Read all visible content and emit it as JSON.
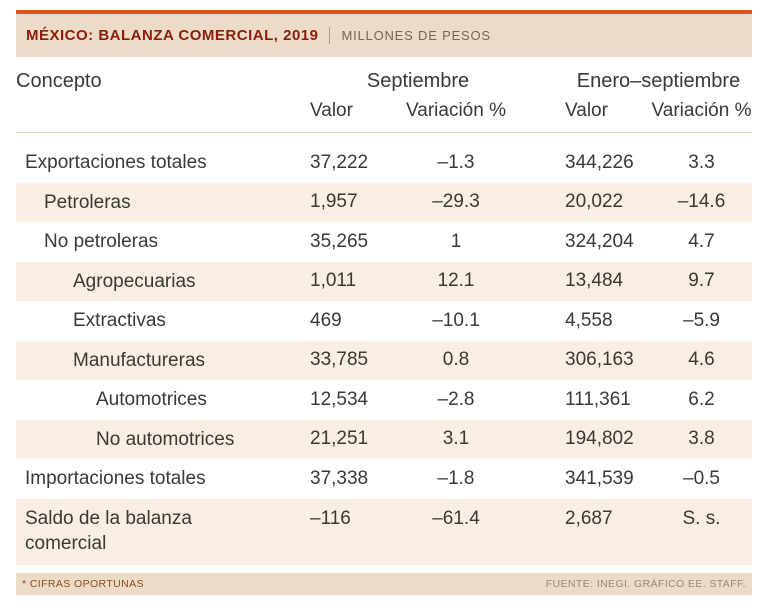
{
  "colors": {
    "accent_bar": "#da5319",
    "band_bg": "#ecdbc6",
    "title_text": "#8e1c0c",
    "row_stripe": "#f8eee1",
    "body_text": "#3a3936"
  },
  "header": {
    "title": "MÉXICO: BALANZA COMERCIAL, 2019",
    "subtitle": "MILLONES DE PESOS"
  },
  "table": {
    "concept_header": "Concepto",
    "groups": [
      {
        "label": "Septiembre",
        "sub": [
          "Valor",
          "Variación %"
        ]
      },
      {
        "label": "Enero–septiembre",
        "sub": [
          "Valor",
          "Variación %"
        ]
      }
    ],
    "rows": [
      {
        "label": "Exportaciones totales",
        "indent": 0,
        "sep_valor": "37,222",
        "sep_var": "–1.3",
        "ene_valor": "344,226",
        "ene_var": "3.3"
      },
      {
        "label": "Petroleras",
        "indent": 1,
        "sep_valor": "1,957",
        "sep_var": "–29.3",
        "ene_valor": "20,022",
        "ene_var": "–14.6"
      },
      {
        "label": "No petroleras",
        "indent": 1,
        "sep_valor": "35,265",
        "sep_var": "1",
        "ene_valor": "324,204",
        "ene_var": "4.7"
      },
      {
        "label": "Agropecuarias",
        "indent": 2,
        "sep_valor": "1,011",
        "sep_var": "12.1",
        "ene_valor": "13,484",
        "ene_var": "9.7"
      },
      {
        "label": "Extractivas",
        "indent": 2,
        "sep_valor": "469",
        "sep_var": "–10.1",
        "ene_valor": "4,558",
        "ene_var": "–5.9"
      },
      {
        "label": "Manufactureras",
        "indent": 2,
        "sep_valor": "33,785",
        "sep_var": "0.8",
        "ene_valor": "306,163",
        "ene_var": "4.6"
      },
      {
        "label": "Automotrices",
        "indent": 3,
        "sep_valor": "12,534",
        "sep_var": "–2.8",
        "ene_valor": "111,361",
        "ene_var": "6.2"
      },
      {
        "label": "No automotrices",
        "indent": 3,
        "sep_valor": "21,251",
        "sep_var": "3.1",
        "ene_valor": "194,802",
        "ene_var": "3.8"
      },
      {
        "label": "Importaciones totales",
        "indent": 0,
        "sep_valor": "37,338",
        "sep_var": "–1.8",
        "ene_valor": "341,539",
        "ene_var": "–0.5"
      },
      {
        "label": "Saldo de la balanza\ncomercial",
        "indent": 0,
        "sep_valor": "–116",
        "sep_var": "–61.4",
        "ene_valor": "2,687",
        "ene_var": "S. s."
      }
    ]
  },
  "footer": {
    "note": "* CIFRAS OPORTUNAS",
    "source": "FUENTE: INEGI. GRÁFICO EE. STAFF."
  },
  "chart_data": {
    "type": "table",
    "title": "MÉXICO: BALANZA COMERCIAL, 2019",
    "units": "MILLONES DE PESOS",
    "columns": [
      "Concepto",
      "Septiembre Valor",
      "Septiembre Variación %",
      "Enero–septiembre Valor",
      "Enero–septiembre Variación %"
    ],
    "rows": [
      [
        "Exportaciones totales",
        37222,
        -1.3,
        344226,
        3.3
      ],
      [
        "Petroleras",
        1957,
        -29.3,
        20022,
        -14.6
      ],
      [
        "No petroleras",
        35265,
        1,
        324204,
        4.7
      ],
      [
        "Agropecuarias",
        1011,
        12.1,
        13484,
        9.7
      ],
      [
        "Extractivas",
        469,
        -10.1,
        4558,
        -5.9
      ],
      [
        "Manufactureras",
        33785,
        0.8,
        306163,
        4.6
      ],
      [
        "Automotrices",
        12534,
        -2.8,
        111361,
        6.2
      ],
      [
        "No automotrices",
        21251,
        3.1,
        194802,
        3.8
      ],
      [
        "Importaciones totales",
        37338,
        -1.8,
        341539,
        -0.5
      ],
      [
        "Saldo de la balanza comercial",
        -116,
        -61.4,
        2687,
        "S. s."
      ]
    ],
    "note": "* CIFRAS OPORTUNAS",
    "source": "FUENTE: INEGI. GRÁFICO EE. STAFF."
  }
}
